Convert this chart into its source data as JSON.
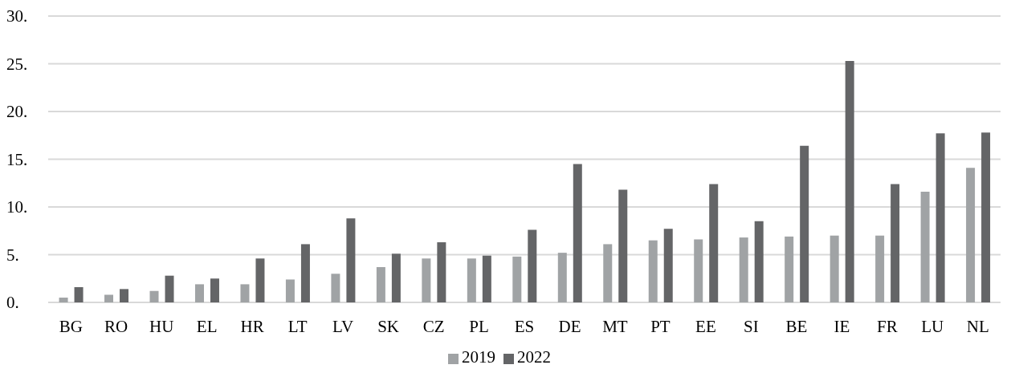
{
  "chart_data": {
    "type": "bar",
    "categories": [
      "BG",
      "RO",
      "HU",
      "EL",
      "HR",
      "LT",
      "LV",
      "SK",
      "CZ",
      "PL",
      "ES",
      "DE",
      "MT",
      "PT",
      "EE",
      "SI",
      "BE",
      "IE",
      "FR",
      "LU",
      "NL"
    ],
    "series": [
      {
        "name": "2019",
        "color": "#a0a3a5",
        "values": [
          0.5,
          0.8,
          1.2,
          1.9,
          1.9,
          2.4,
          3.0,
          3.7,
          4.6,
          4.6,
          4.8,
          5.2,
          6.1,
          6.5,
          6.6,
          6.8,
          6.9,
          7.0,
          7.0,
          11.6,
          14.1
        ]
      },
      {
        "name": "2022",
        "color": "#646567",
        "values": [
          1.6,
          1.4,
          2.8,
          2.5,
          4.6,
          6.1,
          8.8,
          5.1,
          6.3,
          4.9,
          7.6,
          14.5,
          11.8,
          7.7,
          12.4,
          8.5,
          16.4,
          25.3,
          12.4,
          17.7,
          17.8
        ]
      }
    ],
    "ylim": [
      0,
      30
    ],
    "yticks": [
      {
        "value": 0,
        "label": "0."
      },
      {
        "value": 5,
        "label": "5."
      },
      {
        "value": 10,
        "label": "10."
      },
      {
        "value": 15,
        "label": "15."
      },
      {
        "value": 20,
        "label": "20."
      },
      {
        "value": 25,
        "label": "25."
      },
      {
        "value": 30,
        "label": "30."
      }
    ],
    "grid": "y",
    "legend": "bottom"
  }
}
